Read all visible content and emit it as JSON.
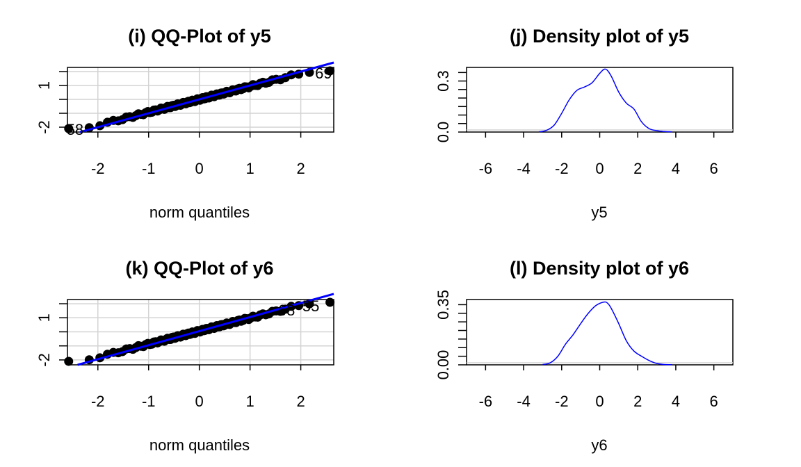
{
  "colors": {
    "line": "#0000ff",
    "points": "#000000",
    "grid": "#d3d3d3",
    "box": "#000000"
  },
  "chart_data": [
    {
      "id": "qq_y5",
      "type": "scatter",
      "title": "(i) QQ-Plot of y5",
      "xlabel": "norm quantiles",
      "ylabel": "",
      "xlim": [
        -2.6,
        2.65
      ],
      "ylim": [
        -2.35,
        2.3
      ],
      "xticks": [
        -2,
        -1,
        0,
        1,
        2
      ],
      "yticks_labeled": [
        -2,
        1
      ],
      "yticks_minor": [
        -1,
        0,
        2
      ],
      "grid": true,
      "reference_line": {
        "intercept": 0.0,
        "slope": 1.0
      },
      "outlier_labels": [
        {
          "text": "69",
          "x": 2.45,
          "y": 1.9
        },
        {
          "text": "58",
          "x": -2.45,
          "y": -2.15
        }
      ],
      "points": {
        "n": 100,
        "low_tail": -2.05,
        "high_tail": 2.0,
        "min": -2.1,
        "max": 2.05
      }
    },
    {
      "id": "density_y5",
      "type": "line",
      "title": "(j) Density plot of y5",
      "xlabel": "y5",
      "ylabel": "",
      "xlim": [
        -7,
        7
      ],
      "ylim": [
        0,
        0.38
      ],
      "xticks": [
        -6,
        -4,
        -2,
        0,
        2,
        4,
        6
      ],
      "yticks_labeled": [
        0.0,
        0.3
      ],
      "ytick_labels": [
        "0.0",
        "0.3"
      ],
      "yticks_minor": [
        0.05,
        0.1,
        0.15,
        0.2,
        0.25,
        0.35
      ],
      "grid": false,
      "x": [
        -3.2,
        -2.8,
        -2.4,
        -2.0,
        -1.6,
        -1.2,
        -0.8,
        -0.4,
        0.0,
        0.3,
        0.6,
        1.0,
        1.4,
        1.8,
        2.2,
        2.6,
        3.0,
        3.4,
        3.8
      ],
      "y": [
        0.001,
        0.01,
        0.04,
        0.11,
        0.19,
        0.245,
        0.265,
        0.29,
        0.345,
        0.37,
        0.33,
        0.235,
        0.17,
        0.135,
        0.06,
        0.02,
        0.008,
        0.003,
        0.001
      ]
    },
    {
      "id": "qq_y6",
      "type": "scatter",
      "title": "(k) QQ-Plot of y6",
      "xlabel": "norm quantiles",
      "ylabel": "",
      "xlim": [
        -2.6,
        2.65
      ],
      "ylim": [
        -2.35,
        2.3
      ],
      "xticks": [
        -2,
        -1,
        0,
        1,
        2
      ],
      "yticks_labeled": [
        -2,
        1
      ],
      "yticks_minor": [
        -1,
        0,
        2
      ],
      "grid": true,
      "reference_line": {
        "intercept": 0.05,
        "slope": 1.0
      },
      "outlier_labels": [
        {
          "text": "68",
          "x": 1.72,
          "y": 1.55
        },
        {
          "text": "55",
          "x": 2.2,
          "y": 1.85
        }
      ],
      "points": {
        "n": 100,
        "low_tail": -2.0,
        "high_tail": 2.05,
        "min": -2.1,
        "max": 2.1
      }
    },
    {
      "id": "density_y6",
      "type": "line",
      "title": "(l) Density plot of y6",
      "xlabel": "y6",
      "ylabel": "",
      "xlim": [
        -7,
        7
      ],
      "ylim": [
        0,
        0.38
      ],
      "xticks": [
        -6,
        -4,
        -2,
        0,
        2,
        4,
        6
      ],
      "yticks_labeled": [
        0.0,
        0.35
      ],
      "ytick_labels": [
        "0.00",
        "0.35"
      ],
      "yticks_minor": [
        0.05,
        0.1,
        0.15,
        0.2,
        0.25,
        0.3
      ],
      "grid": false,
      "x": [
        -3.0,
        -2.6,
        -2.2,
        -1.8,
        -1.4,
        -1.0,
        -0.6,
        -0.2,
        0.2,
        0.4,
        0.6,
        1.0,
        1.4,
        1.8,
        2.2,
        2.6,
        3.0,
        3.4,
        3.8
      ],
      "y": [
        0.002,
        0.012,
        0.05,
        0.12,
        0.175,
        0.24,
        0.3,
        0.345,
        0.365,
        0.36,
        0.33,
        0.24,
        0.14,
        0.08,
        0.05,
        0.025,
        0.008,
        0.002,
        0.001
      ]
    }
  ]
}
